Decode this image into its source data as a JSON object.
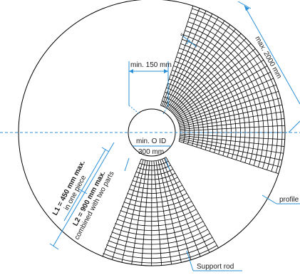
{
  "labels": {
    "min_150": "min. 150 mm",
    "min_id": "min. O ID",
    "id_value": "300 mm",
    "max_2000": "max. 2000 mm",
    "spacing_s": "s",
    "l1_bold": "L1 = 450 mm max.",
    "l1_sub": "in one piece",
    "l2_bold": "L2 = 900 mm max.",
    "l2_sub": "combined with two parts",
    "profile": "profile",
    "support_rod": "Support rod"
  },
  "colors": {
    "line": "#000000",
    "accent": "#2a8fd6"
  }
}
